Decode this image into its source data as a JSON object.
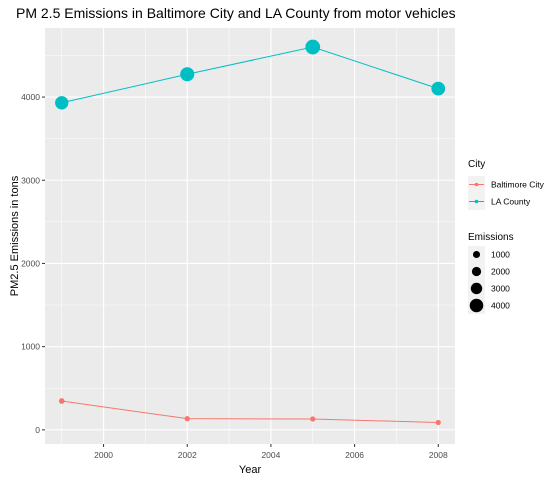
{
  "chart_data": {
    "type": "line",
    "title": "PM 2.5 Emissions in Baltimore City and LA County from motor vehicles",
    "xlabel": "Year",
    "ylabel": "PM2.5 Emissions in tons",
    "xlim": [
      1998.6,
      2008.4
    ],
    "ylim": [
      -170,
      4830
    ],
    "x_ticks": [
      2000,
      2002,
      2004,
      2006,
      2008
    ],
    "y_ticks": [
      0,
      1000,
      2000,
      3000,
      4000
    ],
    "x_tick_labels": [
      "2000",
      "2002",
      "2004",
      "2006",
      "2008"
    ],
    "y_tick_labels": [
      "0",
      "1000",
      "2000",
      "3000",
      "4000"
    ],
    "grid": true,
    "background": "#ebebeb",
    "series": [
      {
        "name": "Baltimore City",
        "color": "#F8766D",
        "x": [
          1999,
          2002,
          2005,
          2008
        ],
        "values": [
          346.8,
          134.3,
          130.4,
          88.3
        ]
      },
      {
        "name": "LA County",
        "color": "#00BFC4",
        "x": [
          1999,
          2002,
          2005,
          2008
        ],
        "values": [
          3931,
          4274,
          4601,
          4101
        ]
      }
    ],
    "legend": {
      "position": "right",
      "color_title": "City",
      "size_title": "Emissions",
      "size_values": [
        1000,
        2000,
        3000,
        4000
      ],
      "size_labels": [
        "1000",
        "2000",
        "3000",
        "4000"
      ]
    }
  }
}
